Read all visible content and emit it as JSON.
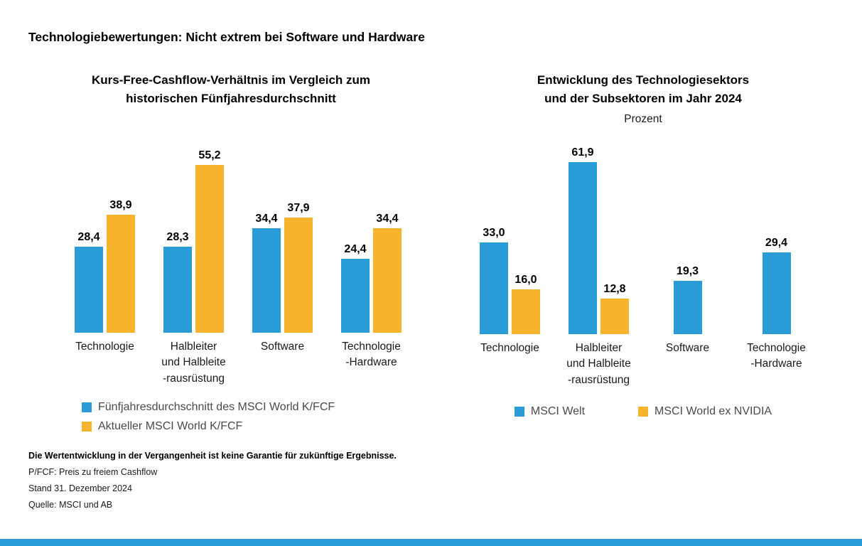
{
  "page": {
    "main_title": "Technologiebewertungen: Nicht extrem bei Software und Hardware",
    "footnotes": {
      "disclaimer": "Die Wertentwicklung in der Vergangenheit ist keine Garantie für zukünftige Ergebnisse.",
      "lines": [
        "P/FCF: Preis zu freiem Cashflow",
        "Stand 31. Dezember 2024",
        "Quelle: MSCI und AB"
      ]
    }
  },
  "colors": {
    "blue": "#2A9CD8",
    "yellow": "#F8B32D"
  },
  "chart_data": [
    {
      "type": "bar",
      "title": "Kurs-Free-Cashflow-Verhältnis im Vergleich zum\nhistorischen Fünfjahresdurchschnitt",
      "subtitle": "",
      "categories": [
        "Technologie",
        "Halbleiter\nund Halbleite\n-rausrüstung",
        "Software",
        "Technologie\n-Hardware"
      ],
      "series": [
        {
          "name": "Fünfjahresdurchschnitt des MSCI World K/FCF",
          "color": "blue",
          "values": [
            28.4,
            28.3,
            34.4,
            24.4
          ]
        },
        {
          "name": "Aktueller MSCI World K/FCF",
          "color": "yellow",
          "values": [
            38.9,
            55.2,
            37.9,
            34.4
          ]
        }
      ],
      "xlabel": "",
      "ylabel": "",
      "ylim": [
        0,
        60
      ],
      "grid": false,
      "value_labels": true,
      "decimal_separator": ",",
      "legend_position": "bottom-left",
      "legend_layout": "column"
    },
    {
      "type": "bar",
      "title": "Entwicklung des Technologiesektors\nund der Subsektoren im Jahr 2024",
      "subtitle": "Prozent",
      "categories": [
        "Technologie",
        "Halbleiter\nund Halbleite\n-rausrüstung",
        "Software",
        "Technologie\n-Hardware"
      ],
      "series": [
        {
          "name": "MSCI Welt",
          "color": "blue",
          "values": [
            33.0,
            61.9,
            19.3,
            29.4
          ]
        },
        {
          "name": "MSCI World ex NVIDIA",
          "color": "yellow",
          "values": [
            16.0,
            12.8,
            null,
            null
          ]
        }
      ],
      "xlabel": "",
      "ylabel": "",
      "ylim": [
        0,
        65
      ],
      "grid": false,
      "value_labels": true,
      "decimal_separator": ",",
      "legend_position": "bottom-center",
      "legend_layout": "row"
    }
  ]
}
